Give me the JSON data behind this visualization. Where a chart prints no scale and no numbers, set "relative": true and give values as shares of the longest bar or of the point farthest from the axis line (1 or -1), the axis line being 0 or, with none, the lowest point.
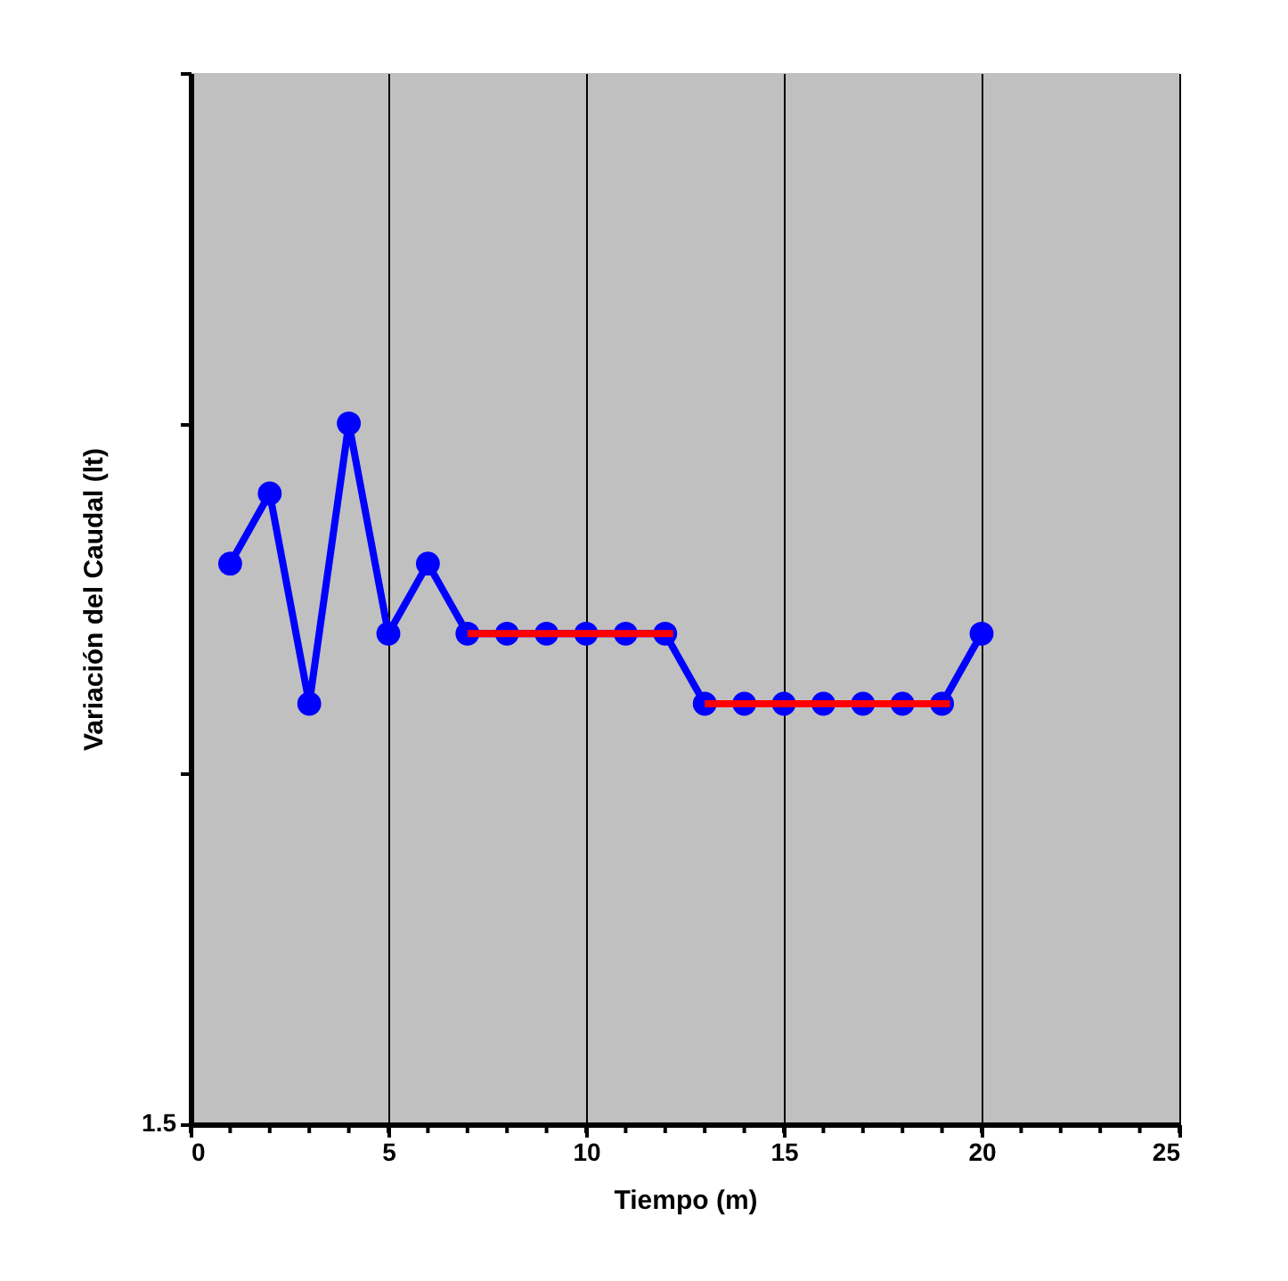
{
  "chart_data": {
    "type": "line",
    "relative": true,
    "xlabel": "Tiempo (m)",
    "ylabel": "Variación del Caudal (lt)",
    "annotations": [
      "1.5"
    ],
    "xlim": [
      0,
      25
    ],
    "xticks": [
      0,
      5,
      10,
      15,
      20,
      25
    ],
    "grid": "x",
    "marker": "circle",
    "line_style": "solid",
    "series": [
      {
        "color": "#0000ff",
        "x": [
          1,
          2,
          3,
          4,
          5,
          6,
          7,
          8,
          9,
          10,
          11,
          12,
          13,
          14,
          15,
          16,
          17,
          18,
          19,
          20
        ],
        "values": [
          0.8,
          0.9,
          0.6,
          1.0,
          0.7,
          0.8,
          0.7,
          0.7,
          0.7,
          0.7,
          0.7,
          0.7,
          0.6,
          0.6,
          0.6,
          0.6,
          0.6,
          0.6,
          0.6,
          0.7
        ]
      },
      {
        "color": "#ff0000",
        "type": "line",
        "marker": "none",
        "x": [
          7,
          12.2
        ],
        "values": [
          0.7,
          0.7
        ]
      },
      {
        "color": "#ff0000",
        "type": "line",
        "marker": "none",
        "x": [
          13,
          19.2
        ],
        "values": [
          0.6,
          0.6
        ]
      }
    ]
  }
}
